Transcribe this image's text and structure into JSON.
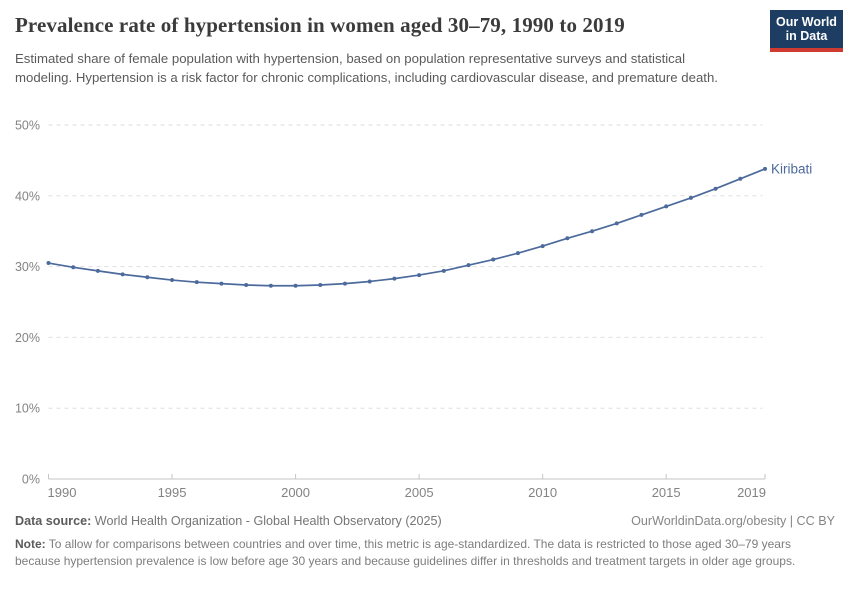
{
  "header": {
    "title": "Prevalence rate of hypertension in women aged 30–79, 1990 to 2019",
    "subtitle": "Estimated share of female population with hypertension, based on population representative surveys and statistical modeling. Hypertension is a risk factor for chronic complications, including cardiovascular disease, and premature death."
  },
  "logo": {
    "line1": "Our World",
    "line2": "in Data",
    "bg_color": "#1d3d63",
    "accent_color": "#cf3b31"
  },
  "chart_data": {
    "type": "line",
    "title": "Prevalence rate of hypertension in women aged 30–79, 1990 to 2019",
    "x": [
      1990,
      1991,
      1992,
      1993,
      1994,
      1995,
      1996,
      1997,
      1998,
      1999,
      2000,
      2001,
      2002,
      2003,
      2004,
      2005,
      2006,
      2007,
      2008,
      2009,
      2010,
      2011,
      2012,
      2013,
      2014,
      2015,
      2016,
      2017,
      2018,
      2019
    ],
    "series": [
      {
        "name": "Kiribati",
        "color": "#4c6a9c",
        "values": [
          30.5,
          29.9,
          29.4,
          28.9,
          28.5,
          28.1,
          27.8,
          27.6,
          27.4,
          27.3,
          27.3,
          27.4,
          27.6,
          27.9,
          28.3,
          28.8,
          29.4,
          30.2,
          31.0,
          31.9,
          32.9,
          34.0,
          35.0,
          36.1,
          37.3,
          38.5,
          39.7,
          41.0,
          42.4,
          43.8
        ]
      }
    ],
    "xlabel": "",
    "ylabel": "",
    "ylim": [
      0,
      50
    ],
    "ytick_values": [
      0,
      10,
      20,
      30,
      40,
      50
    ],
    "ytick_labels": [
      "0%",
      "10%",
      "20%",
      "30%",
      "40%",
      "50%"
    ],
    "xtick_values": [
      1990,
      1995,
      2000,
      2005,
      2010,
      2015,
      2019
    ],
    "xtick_labels": [
      "1990",
      "1995",
      "2000",
      "2005",
      "2010",
      "2015",
      "2019"
    ],
    "grid": "horizontal-dashed",
    "legend_position": "end-of-line-label",
    "colors": {
      "grid": "#dedede",
      "axis": "#c6c6c6",
      "tick_label": "#838383",
      "entity_label": "#4c6a9c"
    }
  },
  "footer": {
    "datasource_label": "Data source:",
    "datasource_value": " World Health Organization - Global Health Observatory (2025)",
    "link_text": "OurWorldinData.org/obesity | CC BY",
    "note_label": "Note:",
    "note_text": " To allow for comparisons between countries and over time, this metric is age-standardized. The data is restricted to those aged 30–79 years because hypertension prevalence is low before age 30 years and because guidelines differ in thresholds and treatment targets in older age groups."
  }
}
